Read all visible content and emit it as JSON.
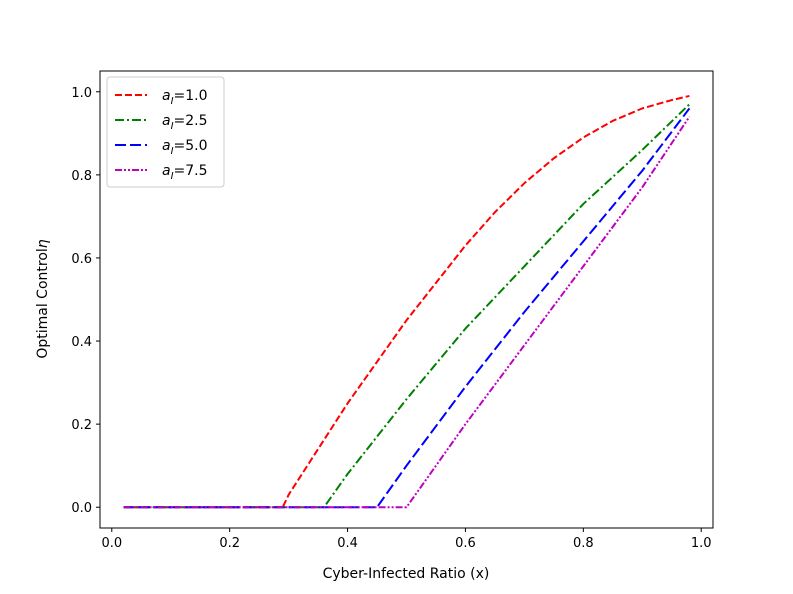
{
  "chart_data": {
    "type": "line",
    "xlabel": "Cyber-Infected Ratio (x)",
    "ylabel": "Optimal Control",
    "ylabel_symbol": "η",
    "xlim": [
      -0.02,
      1.02
    ],
    "ylim": [
      -0.05,
      1.05
    ],
    "xticks": [
      0.0,
      0.2,
      0.4,
      0.6,
      0.8,
      1.0
    ],
    "yticks": [
      0.0,
      0.2,
      0.4,
      0.6,
      0.8,
      1.0
    ],
    "xtick_labels": [
      "0.0",
      "0.2",
      "0.4",
      "0.6",
      "0.8",
      "1.0"
    ],
    "ytick_labels": [
      "0.0",
      "0.2",
      "0.4",
      "0.6",
      "0.8",
      "1.0"
    ],
    "grid": false,
    "legend_position": "top-left",
    "series": [
      {
        "name": "a_I=1.0",
        "legend_var": "a",
        "legend_sub": "I",
        "legend_value": "=1.0",
        "color": "#ff0000",
        "dash": "dashed",
        "x": [
          0.02,
          0.1,
          0.2,
          0.29,
          0.3,
          0.35,
          0.4,
          0.45,
          0.5,
          0.55,
          0.6,
          0.65,
          0.7,
          0.75,
          0.8,
          0.85,
          0.9,
          0.95,
          0.98
        ],
        "y": [
          0.0,
          0.0,
          0.0,
          0.0,
          0.03,
          0.14,
          0.25,
          0.35,
          0.45,
          0.54,
          0.63,
          0.71,
          0.78,
          0.84,
          0.89,
          0.93,
          0.96,
          0.98,
          0.99
        ]
      },
      {
        "name": "a_I=2.5",
        "legend_var": "a",
        "legend_sub": "I",
        "legend_value": "=2.5",
        "color": "#008000",
        "dash": "dashdot",
        "x": [
          0.02,
          0.1,
          0.2,
          0.3,
          0.36,
          0.4,
          0.5,
          0.6,
          0.7,
          0.8,
          0.9,
          0.98
        ],
        "y": [
          0.0,
          0.0,
          0.0,
          0.0,
          0.0,
          0.08,
          0.26,
          0.43,
          0.58,
          0.73,
          0.86,
          0.97
        ]
      },
      {
        "name": "a_I=5.0",
        "legend_var": "a",
        "legend_sub": "I",
        "legend_value": "=5.0",
        "color": "#0000ff",
        "dash": "dashed-long",
        "x": [
          0.02,
          0.1,
          0.2,
          0.3,
          0.4,
          0.45,
          0.5,
          0.6,
          0.7,
          0.8,
          0.9,
          0.98
        ],
        "y": [
          0.0,
          0.0,
          0.0,
          0.0,
          0.0,
          0.0,
          0.1,
          0.29,
          0.47,
          0.64,
          0.81,
          0.96
        ]
      },
      {
        "name": "a_I=7.5",
        "legend_var": "a",
        "legend_sub": "I",
        "legend_value": "=7.5",
        "color": "#bf00bf",
        "dash": "dashdotdot",
        "x": [
          0.02,
          0.1,
          0.2,
          0.3,
          0.4,
          0.5,
          0.55,
          0.6,
          0.7,
          0.8,
          0.9,
          0.98
        ],
        "y": [
          0.0,
          0.0,
          0.0,
          0.0,
          0.0,
          0.0,
          0.1,
          0.2,
          0.39,
          0.58,
          0.77,
          0.94
        ]
      }
    ]
  }
}
